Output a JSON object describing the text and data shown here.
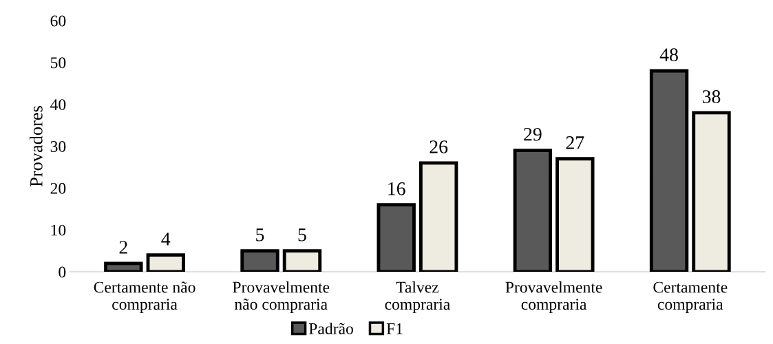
{
  "chart_data": {
    "type": "bar",
    "ylabel": "Provadores",
    "categories": [
      "Certamente não\ncompraria",
      "Provavelmente\nnão compraria",
      "Talvez\ncompraria",
      "Provavelmente\ncompraria",
      "Certamente\ncompraria"
    ],
    "series": [
      {
        "name": "Padrão",
        "color": "#595959",
        "values": [
          2,
          5,
          16,
          29,
          48
        ]
      },
      {
        "name": "F1",
        "color": "#eeece1",
        "values": [
          4,
          5,
          26,
          27,
          38
        ]
      }
    ],
    "ylim": [
      0,
      60
    ],
    "yticks": [
      0,
      10,
      20,
      30,
      40,
      50,
      60
    ],
    "data_labels": true,
    "grid": false,
    "legend": "bottom"
  }
}
